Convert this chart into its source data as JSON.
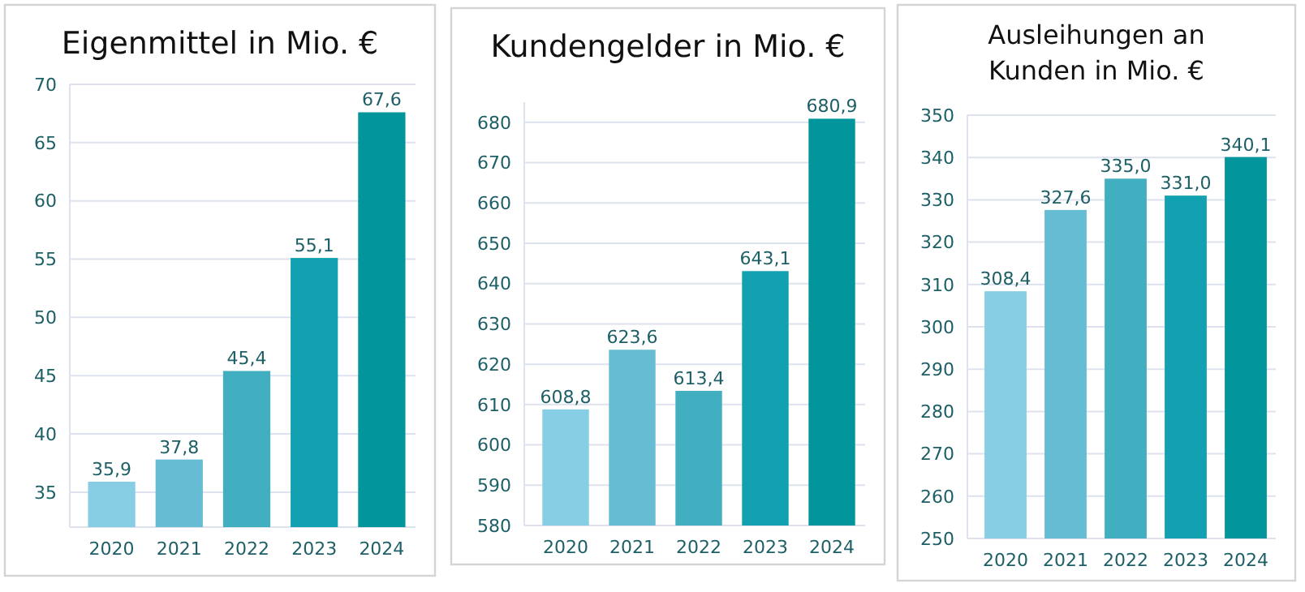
{
  "chart_data": [
    {
      "type": "bar",
      "title": "Eigenmittel in Mio. €",
      "categories": [
        "2020",
        "2021",
        "2022",
        "2023",
        "2024"
      ],
      "values": [
        35.9,
        37.8,
        45.4,
        55.1,
        67.6
      ],
      "colors": [
        "#87cde3",
        "#66bcd2",
        "#42afc0",
        "#11a1b0",
        "#02959b"
      ],
      "value_labels": [
        "35,9",
        "37,8",
        "45,4",
        "55,1",
        "67,6"
      ],
      "ylim": [
        32,
        70
      ],
      "yticks": [
        35,
        40,
        45,
        50,
        55,
        60,
        65,
        70
      ],
      "grid": "y"
    },
    {
      "type": "bar",
      "title": "Kundengelder in Mio. €",
      "categories": [
        "2020",
        "2021",
        "2022",
        "2023",
        "2024"
      ],
      "values": [
        608.8,
        623.6,
        613.4,
        643.1,
        680.9
      ],
      "colors": [
        "#87cde3",
        "#66bcd2",
        "#42afc0",
        "#11a1b0",
        "#02959b"
      ],
      "value_labels": [
        "608,8",
        "623,6",
        "613,4",
        "643,1",
        "680,9"
      ],
      "ylim": [
        580,
        685
      ],
      "yticks": [
        580,
        590,
        600,
        610,
        620,
        630,
        640,
        650,
        660,
        670,
        680
      ],
      "grid": "y"
    },
    {
      "type": "bar",
      "title": "Ausleihungen an Kunden in Mio. €",
      "categories": [
        "2020",
        "2021",
        "2022",
        "2023",
        "2024"
      ],
      "values": [
        308.4,
        327.6,
        335.0,
        331.0,
        340.1
      ],
      "colors": [
        "#87cde3",
        "#66bcd2",
        "#42afc0",
        "#11a1b0",
        "#02959b"
      ],
      "value_labels": [
        "308,4",
        "327,6",
        "335,0",
        "331,0",
        "340,1"
      ],
      "ylim": [
        250,
        350
      ],
      "yticks": [
        250,
        260,
        270,
        280,
        290,
        300,
        310,
        320,
        330,
        340,
        350
      ],
      "grid": "y"
    }
  ]
}
